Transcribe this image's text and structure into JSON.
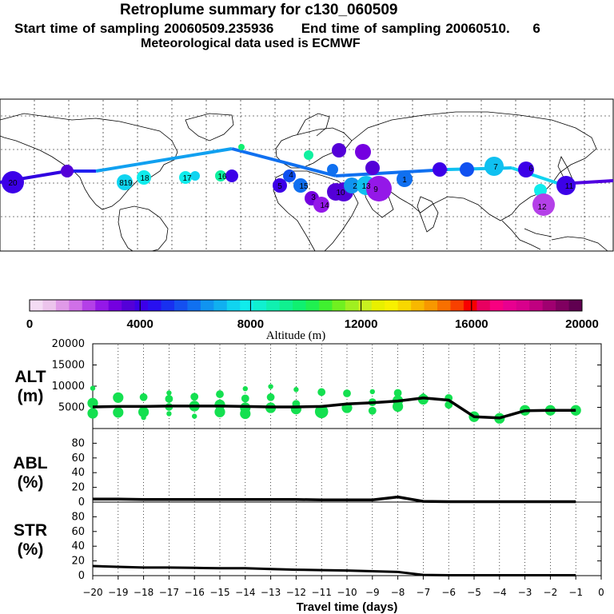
{
  "header": {
    "title": "Retroplume summary for c130_060509",
    "start_label": "Start time of sampling",
    "start_value": "20060509.235936",
    "end_label": "End time of sampling",
    "end_value": "20060510.",
    "end_suffix": "6",
    "met_line": "Meteorological data used is ECMWF"
  },
  "colorbar": {
    "ticks": [
      "0",
      "4000",
      "8000",
      "12000",
      "16000",
      "20000"
    ],
    "label": "Altitude (m)",
    "colors": [
      "#f4dcf4",
      "#ecc4ec",
      "#e09ae8",
      "#d070e8",
      "#b440e8",
      "#9418e8",
      "#7400e0",
      "#5400d8",
      "#3c00e8",
      "#2810f0",
      "#1830f0",
      "#1450f0",
      "#1070f0",
      "#1094f0",
      "#10b0f0",
      "#10d4f0",
      "#10ecec",
      "#10f0d0",
      "#10f0b0",
      "#10f090",
      "#10f070",
      "#20f050",
      "#40f030",
      "#70f020",
      "#a0f020",
      "#c8f020",
      "#e8f000",
      "#f8f000",
      "#f8d800",
      "#f8b800",
      "#f89800",
      "#f87000",
      "#f84000",
      "#f80000",
      "#e80060",
      "#f80080",
      "#e80090",
      "#d8008c",
      "#c00080",
      "#a00070",
      "#800060",
      "#600050"
    ]
  },
  "map": {
    "plume_labels": [
      "20",
      "19",
      "18",
      "17",
      "16",
      "15",
      "14",
      "13",
      "12",
      "11",
      "10",
      "9",
      "8",
      "7",
      "6",
      "5",
      "4",
      "3",
      "2",
      "1"
    ]
  },
  "panels": {
    "alt": {
      "name": "ALT",
      "unit": "(m)"
    },
    "abl": {
      "name": "ABL",
      "unit": "(%)"
    },
    "str": {
      "name": "STR",
      "unit": "(%)"
    }
  },
  "xaxis": {
    "label": "Travel time (days)"
  },
  "chart_data": [
    {
      "type": "line",
      "title": "ALT",
      "ylabel": "ALT (m)",
      "xlabel": "Travel time (days)",
      "xlim": [
        -20,
        0
      ],
      "ylim": [
        0,
        20000
      ],
      "yticks": [
        5000,
        10000,
        15000,
        20000
      ],
      "xticks": [
        -20,
        -19,
        -18,
        -17,
        -16,
        -15,
        -14,
        -13,
        -12,
        -11,
        -10,
        -9,
        -8,
        -7,
        -6,
        -5,
        -4,
        -3,
        -2,
        -1,
        0
      ],
      "xtick_labels": [
        "−20",
        "−19",
        "−18",
        "−17",
        "−16",
        "−15",
        "−14",
        "−13",
        "−12",
        "−11",
        "−10",
        "−9",
        "−8",
        "−7",
        "−6",
        "−5",
        "−4",
        "−3",
        "−2",
        "−1",
        "0"
      ],
      "series": [
        {
          "name": "median altitude",
          "x": [
            -20,
            -19,
            -18,
            -17,
            -16,
            -15,
            -14,
            -13,
            -12,
            -11,
            -10,
            -9,
            -8,
            -7,
            -6,
            -5,
            -4,
            -3,
            -2,
            -1
          ],
          "values": [
            5100,
            5200,
            5200,
            5300,
            5300,
            5300,
            5200,
            5100,
            5100,
            5200,
            5800,
            6100,
            6500,
            7200,
            6700,
            2800,
            2500,
            4200,
            4300,
            4300
          ]
        },
        {
          "name": "cluster altitudes",
          "points": [
            [
              -20,
              9500,
              1
            ],
            [
              -20,
              6000,
              3
            ],
            [
              -20,
              3600,
              3
            ],
            [
              -19,
              7300,
              3
            ],
            [
              -19,
              3800,
              3
            ],
            [
              -18,
              7400,
              2
            ],
            [
              -18,
              3900,
              3
            ],
            [
              -18,
              2600,
              1
            ],
            [
              -17,
              8400,
              1
            ],
            [
              -17,
              7000,
              2
            ],
            [
              -17,
              5100,
              2
            ],
            [
              -17,
              3500,
              1
            ],
            [
              -16,
              7500,
              2
            ],
            [
              -16,
              5300,
              3
            ],
            [
              -16,
              2900,
              1
            ],
            [
              -15,
              8100,
              2
            ],
            [
              -15,
              5600,
              3
            ],
            [
              -15,
              3900,
              3
            ],
            [
              -14,
              9400,
              1
            ],
            [
              -14,
              7100,
              2
            ],
            [
              -14,
              4900,
              3
            ],
            [
              -14,
              3500,
              3
            ],
            [
              -13,
              9900,
              1
            ],
            [
              -13,
              7400,
              2
            ],
            [
              -13,
              4900,
              3
            ],
            [
              -12,
              9200,
              1
            ],
            [
              -12,
              5800,
              2
            ],
            [
              -12,
              4600,
              3
            ],
            [
              -11,
              8600,
              2
            ],
            [
              -11,
              4000,
              4
            ],
            [
              -10,
              8300,
              2
            ],
            [
              -10,
              4900,
              3
            ],
            [
              -9,
              8700,
              1
            ],
            [
              -9,
              6200,
              2
            ],
            [
              -9,
              4200,
              2
            ],
            [
              -8,
              8400,
              2
            ],
            [
              -8,
              6600,
              3
            ],
            [
              -8,
              5200,
              3
            ],
            [
              -7,
              7700,
              1
            ],
            [
              -7,
              6900,
              3
            ],
            [
              -6,
              7200,
              2
            ],
            [
              -6,
              5600,
              2
            ],
            [
              -5,
              2800,
              3
            ],
            [
              -4,
              2400,
              3
            ],
            [
              -3,
              4300,
              3
            ],
            [
              -2,
              4300,
              3
            ],
            [
              -1,
              4300,
              3
            ]
          ]
        }
      ]
    },
    {
      "type": "line",
      "title": "ABL",
      "ylabel": "ABL (%)",
      "xlim": [
        -20,
        0
      ],
      "ylim": [
        0,
        100
      ],
      "yticks": [
        0,
        20,
        40,
        60,
        80
      ],
      "series": [
        {
          "name": "ABL fraction",
          "x": [
            -20,
            -19,
            -18,
            -17,
            -16,
            -15,
            -14,
            -13,
            -12,
            -11,
            -10,
            -9,
            -8,
            -7,
            -6,
            -5,
            -4,
            -3,
            -2,
            -1
          ],
          "values": [
            4,
            4,
            3.5,
            3.5,
            3.5,
            3.5,
            3.5,
            3.5,
            3.5,
            3,
            3,
            3,
            7,
            1,
            0.5,
            0.5,
            0.5,
            0.5,
            0.5,
            0.5
          ]
        }
      ]
    },
    {
      "type": "line",
      "title": "STR",
      "ylabel": "STR (%)",
      "xlim": [
        -20,
        0
      ],
      "ylim": [
        0,
        100
      ],
      "yticks": [
        0,
        20,
        40,
        60,
        80
      ],
      "series": [
        {
          "name": "stratospheric fraction",
          "x": [
            -20,
            -19,
            -18,
            -17,
            -16,
            -15,
            -14,
            -13,
            -12,
            -11,
            -10,
            -9,
            -8,
            -7,
            -6,
            -5,
            -4,
            -3,
            -2,
            -1
          ],
          "values": [
            13,
            12,
            11,
            11,
            10.5,
            10,
            10,
            9,
            8,
            7.5,
            7,
            6,
            5,
            1,
            0.5,
            0.5,
            0.5,
            0.5,
            0.5,
            0.5
          ]
        }
      ]
    }
  ]
}
